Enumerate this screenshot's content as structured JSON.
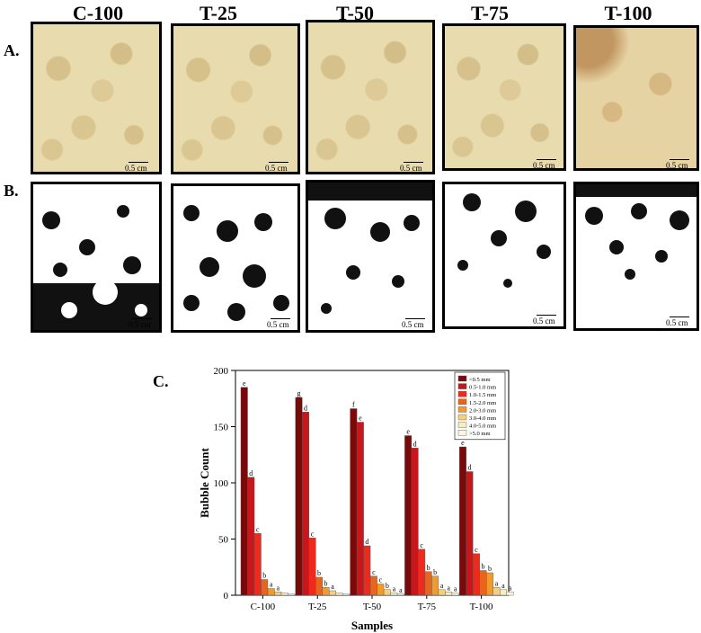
{
  "columns": [
    "C-100",
    "T-25",
    "T-50",
    "T-75",
    "T-100"
  ],
  "row_labels": {
    "a": "A.",
    "b": "B.",
    "c": "C."
  },
  "scale_bar_label": "0.5 cm",
  "chart_data": {
    "type": "bar",
    "title": "",
    "xlabel": "Samples",
    "ylabel": "Bubble Count",
    "ylim": [
      0,
      200
    ],
    "yticks": [
      0,
      50,
      100,
      150,
      200
    ],
    "categories": [
      "C-100",
      "T-25",
      "T-50",
      "T-75",
      "T-100"
    ],
    "legend_position": "top-right",
    "series": [
      {
        "name": "<0.5 mm",
        "color": "#7a0a0a",
        "values": [
          185,
          176,
          166,
          142,
          132
        ],
        "labels": [
          "e",
          "g",
          "f",
          "e",
          "e"
        ]
      },
      {
        "name": "0.5-1.0 mm",
        "color": "#c8161a",
        "values": [
          105,
          163,
          154,
          131,
          110
        ],
        "labels": [
          "d",
          "d",
          "e",
          "d",
          "d"
        ]
      },
      {
        "name": "1.0-1.5 mm",
        "color": "#ee2a1c",
        "values": [
          55,
          51,
          44,
          41,
          37
        ],
        "labels": [
          "c",
          "c",
          "d",
          "c",
          "c"
        ]
      },
      {
        "name": "1.5-2.0 mm",
        "color": "#e8651e",
        "values": [
          14,
          16,
          17,
          21,
          22
        ],
        "labels": [
          "b",
          "b",
          "c",
          "b",
          "b"
        ]
      },
      {
        "name": "2.0-3.0 mm",
        "color": "#f19a2e",
        "values": [
          6,
          7,
          10,
          17,
          20
        ],
        "labels": [
          "a",
          "b",
          "c",
          "b",
          "b"
        ]
      },
      {
        "name": "3.0-4.0 mm",
        "color": "#f5cf7e",
        "values": [
          3,
          4,
          5,
          5,
          7
        ],
        "labels": [
          "a",
          "a",
          "b",
          "a",
          "a"
        ]
      },
      {
        "name": "4.0-5.0 mm",
        "color": "#f7ecc2",
        "values": [
          2,
          2,
          2,
          3,
          5
        ],
        "labels": [
          "",
          "",
          "a",
          "a",
          "a"
        ]
      },
      {
        "name": ">5.0 mm",
        "color": "#fbf7df",
        "values": [
          1,
          1,
          1,
          2,
          3
        ],
        "labels": [
          "",
          "",
          "a",
          "a",
          "a"
        ]
      }
    ]
  }
}
